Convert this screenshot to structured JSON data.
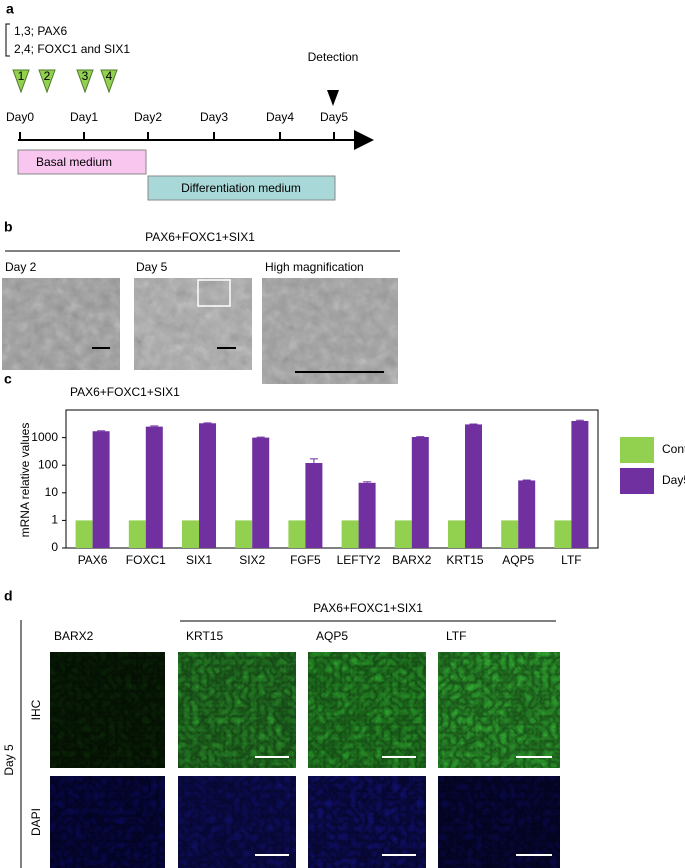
{
  "panel_labels": [
    "a",
    "b",
    "c",
    "d"
  ],
  "panel_a": {
    "legend": [
      "1,3; PAX6",
      "2,4; FOXC1 and SIX1"
    ],
    "markers": [
      "1",
      "2",
      "3",
      "4"
    ],
    "detection": "Detection",
    "days": [
      "Day0",
      "Day1",
      "Day2",
      "Day3",
      "Day4",
      "Day5"
    ],
    "media": [
      "Basal medium",
      "Differentiation medium"
    ]
  },
  "panel_b": {
    "title": "PAX6+FOXC1+SIX1",
    "images": [
      "Day 2",
      "Day 5",
      "High magnification"
    ]
  },
  "chart_data": {
    "type": "bar",
    "title": "PAX6+FOXC1+SIX1",
    "ylabel": "mRNA relative values",
    "categories": [
      "PAX6",
      "FOXC1",
      "SIX1",
      "SIX2",
      "FGF5",
      "LEFTY2",
      "BARX2",
      "KRT15",
      "AQP5",
      "LTF"
    ],
    "series": [
      {
        "name": "Control",
        "color": "#92d050",
        "values": [
          1,
          1,
          1,
          1,
          1,
          1,
          1,
          1,
          1,
          1
        ]
      },
      {
        "name": "Day5",
        "color": "#7030a0",
        "values": [
          1700,
          2500,
          3300,
          1000,
          120,
          23,
          1050,
          3000,
          28,
          4000
        ],
        "errors": [
          60,
          150,
          100,
          40,
          50,
          2,
          30,
          100,
          1,
          250
        ]
      }
    ],
    "ylim": [
      0.1,
      10000
    ],
    "yticks": [
      {
        "value": 0.1,
        "label": "0"
      },
      1,
      10,
      100,
      1000
    ],
    "log": true,
    "legend": "right"
  },
  "panel_d": {
    "title": "PAX6+FOXC1+SIX1",
    "columns": [
      "BARX2",
      "KRT15",
      "AQP5",
      "LTF"
    ],
    "rows": [
      "IHC",
      "DAPI"
    ],
    "group": "Day 5"
  }
}
